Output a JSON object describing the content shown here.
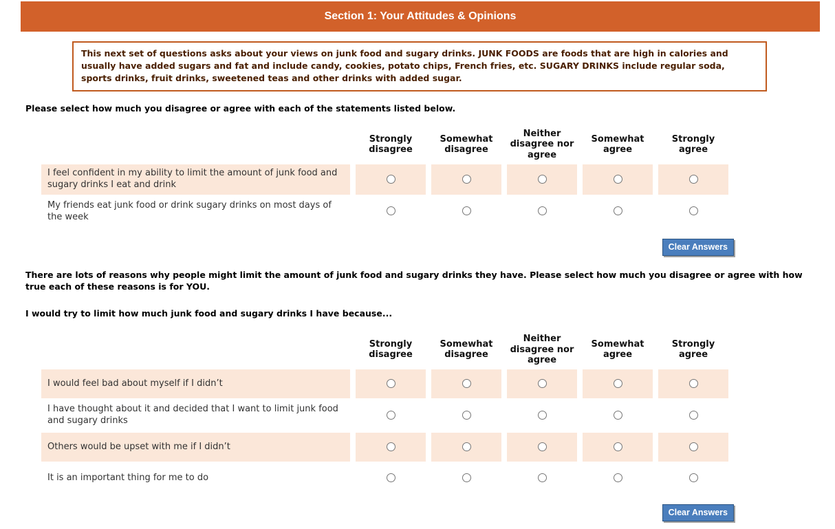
{
  "header": {
    "title": "Section 1: Your Attitudes & Opinions"
  },
  "intro": {
    "text": "This next set of questions asks about your views on junk food and sugary drinks. JUNK FOODS are foods that are high in calories and usually have added sugars and fat and include candy, cookies, potato chips, French fries, etc. SUGARY DRINKS include regular soda, sports drinks, fruit drinks, sweetened teas and other drinks with added sugar."
  },
  "instructions1": "Please select how much you disagree or agree with each of the statements listed below.",
  "scale": {
    "options": [
      "Strongly disagree",
      "Somewhat disagree",
      "Neither disagree nor agree",
      "Somewhat agree",
      "Strongly agree"
    ]
  },
  "table1": {
    "rows": [
      "I feel confident in my ability to limit the amount of junk food and sugary drinks I eat and drink",
      "My friends eat junk food or drink sugary drinks on most days of the week"
    ]
  },
  "instructions2": "There are lots of reasons why people might limit the amount of junk food and sugary drinks they have. Please select how much you disagree or agree with how true each of these reasons is for YOU.",
  "instructions3": "I would try to limit how much junk food and sugary drinks I have because...",
  "table2": {
    "rows": [
      "I would feel bad about myself if I didn’t",
      "I have thought about it and decided that I want to limit junk food and sugary drinks",
      "Others would be upset with me if I didn’t",
      "It is an important thing for me to do"
    ]
  },
  "buttons": {
    "clear": "Clear Answers"
  },
  "colors": {
    "header_bg": "#d2612a",
    "intro_border": "#c05a1e",
    "intro_text": "#4a1f00",
    "row_shade": "#fbe7d9",
    "button_bg": "#4a7ebd"
  },
  "radio_state": "all-unselected"
}
